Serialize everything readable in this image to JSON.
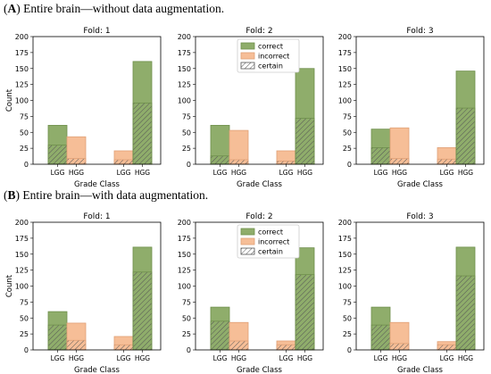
{
  "rows": [
    {
      "tag": "A",
      "title": "Entire brain—without data augmentation.",
      "charts": [
        {
          "title": "Fold: 1",
          "bars": [
            {
              "category": "LGG",
              "series": "correct",
              "total": 61,
              "certain": 30
            },
            {
              "category": "HGG",
              "series": "incorrect",
              "total": 43,
              "certain": 9
            },
            {
              "category": "LGG",
              "series": "incorrect",
              "total": 21,
              "certain": 7
            },
            {
              "category": "HGG",
              "series": "correct",
              "total": 161,
              "certain": 96
            }
          ]
        },
        {
          "title": "Fold: 2",
          "bars": [
            {
              "category": "LGG",
              "series": "correct",
              "total": 61,
              "certain": 13
            },
            {
              "category": "HGG",
              "series": "incorrect",
              "total": 53,
              "certain": 7
            },
            {
              "category": "LGG",
              "series": "incorrect",
              "total": 21,
              "certain": 5
            },
            {
              "category": "HGG",
              "series": "correct",
              "total": 150,
              "certain": 72
            }
          ]
        },
        {
          "title": "Fold: 3",
          "bars": [
            {
              "category": "LGG",
              "series": "correct",
              "total": 55,
              "certain": 26
            },
            {
              "category": "HGG",
              "series": "incorrect",
              "total": 57,
              "certain": 9
            },
            {
              "category": "LGG",
              "series": "incorrect",
              "total": 26,
              "certain": 8
            },
            {
              "category": "HGG",
              "series": "correct",
              "total": 146,
              "certain": 88
            }
          ]
        }
      ]
    },
    {
      "tag": "B",
      "title": "Entire brain—with data augmentation.",
      "charts": [
        {
          "title": "Fold: 1",
          "bars": [
            {
              "category": "LGG",
              "series": "correct",
              "total": 60,
              "certain": 39
            },
            {
              "category": "HGG",
              "series": "incorrect",
              "total": 42,
              "certain": 15
            },
            {
              "category": "LGG",
              "series": "incorrect",
              "total": 21,
              "certain": 8
            },
            {
              "category": "HGG",
              "series": "correct",
              "total": 161,
              "certain": 122
            }
          ]
        },
        {
          "title": "Fold: 2",
          "bars": [
            {
              "category": "LGG",
              "series": "correct",
              "total": 67,
              "certain": 45
            },
            {
              "category": "HGG",
              "series": "incorrect",
              "total": 43,
              "certain": 14
            },
            {
              "category": "LGG",
              "series": "incorrect",
              "total": 14,
              "certain": 8
            },
            {
              "category": "HGG",
              "series": "correct",
              "total": 160,
              "certain": 118
            }
          ]
        },
        {
          "title": "Fold: 3",
          "bars": [
            {
              "category": "LGG",
              "series": "correct",
              "total": 67,
              "certain": 39
            },
            {
              "category": "HGG",
              "series": "incorrect",
              "total": 43,
              "certain": 10
            },
            {
              "category": "LGG",
              "series": "incorrect",
              "total": 13,
              "certain": 8
            },
            {
              "category": "HGG",
              "series": "correct",
              "total": 161,
              "certain": 116
            }
          ]
        }
      ]
    }
  ],
  "chart_data": {
    "type": "bar",
    "stacked_overlay": true,
    "xlabel": "Grade Class",
    "ylabel": "Count",
    "ylim": [
      0,
      200
    ],
    "yticks": [
      0,
      25,
      50,
      75,
      100,
      125,
      150,
      175,
      200
    ],
    "legend": {
      "placement": "top-right",
      "entries": [
        "correct",
        "incorrect",
        "certain"
      ]
    },
    "legend_in_columns": [
      1
    ],
    "colors": {
      "correct": "#8fad6b",
      "correct_edge": "#6f8f4c",
      "incorrect": "#f6be97",
      "incorrect_edge": "#e0a177",
      "hatch": "#555555"
    }
  }
}
